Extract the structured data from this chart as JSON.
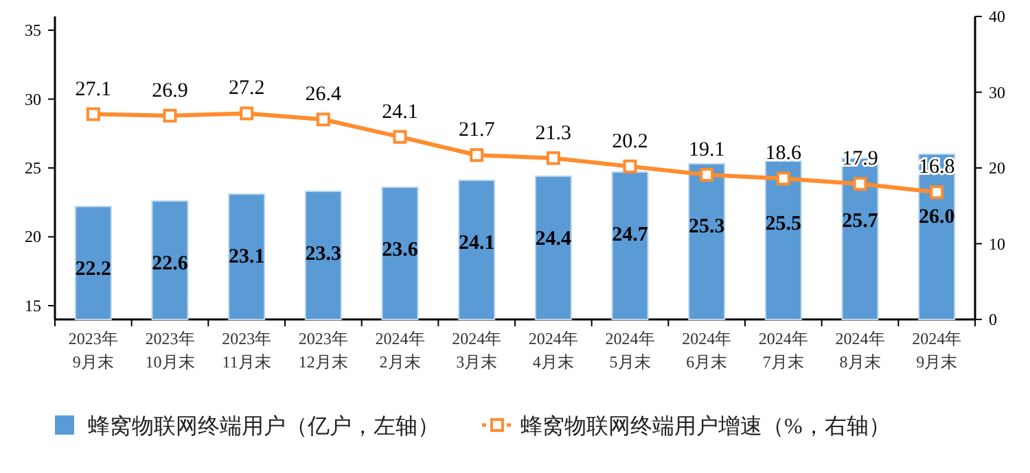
{
  "chart_data": {
    "type": "bar",
    "categories": [
      "2023年\n9月末",
      "2023年\n10月末",
      "2023年\n11月末",
      "2023年\n12月末",
      "2024年\n2月末",
      "2024年\n3月末",
      "2024年\n4月末",
      "2024年\n5月末",
      "2024年\n6月末",
      "2024年\n7月末",
      "2024年\n8月末",
      "2024年\n9月末"
    ],
    "series": [
      {
        "name": "蜂窝物联网终端用户（亿户，左轴）",
        "color": "#5b9bd5",
        "values": [
          22.2,
          22.6,
          23.1,
          23.3,
          23.6,
          24.1,
          24.4,
          24.7,
          25.3,
          25.5,
          25.7,
          26.0
        ],
        "value_labels": [
          "22.2",
          "22.6",
          "23.1",
          "23.3",
          "23.6",
          "24.1",
          "24.4",
          "24.7",
          "25.3",
          "25.5",
          "25.7",
          "26.0"
        ]
      },
      {
        "name": "蜂窝物联网终端用户增速（%，右轴）",
        "type": "line",
        "axis": "y2",
        "color": "#ff8c2e",
        "marker": "square",
        "values": [
          27.1,
          26.9,
          27.2,
          26.4,
          24.1,
          21.7,
          21.3,
          20.2,
          19.1,
          18.6,
          17.9,
          16.8
        ]
      }
    ],
    "ylim": [
      14,
      36
    ],
    "yticks": [
      15,
      20,
      25,
      30,
      35
    ],
    "y2lim": [
      0,
      40
    ],
    "y2ticks": [
      0,
      10,
      20,
      30,
      40
    ],
    "data_labels": true,
    "legend": "bottom",
    "grid": false
  }
}
